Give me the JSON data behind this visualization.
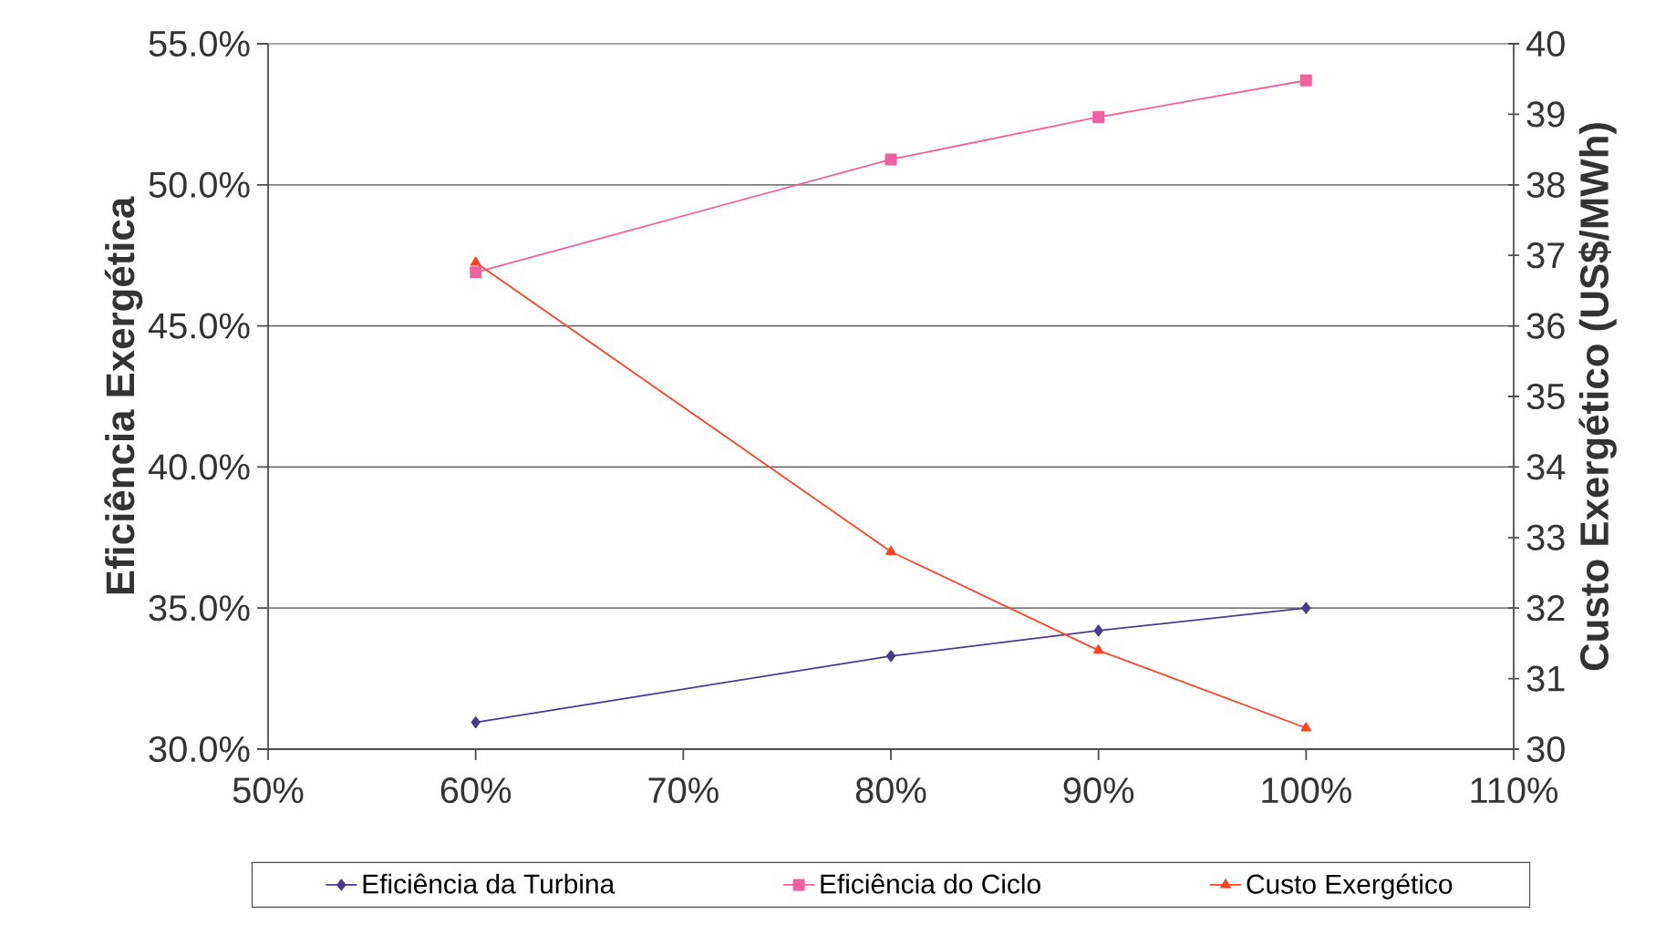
{
  "chart_data": {
    "type": "line",
    "ylabel": "Eficiência Exergética",
    "y2label": "Custo Exergético (US$/MWh)",
    "x": [
      60,
      80,
      90,
      100
    ],
    "xlim": [
      50,
      110
    ],
    "xticks": [
      {
        "value": 50,
        "label": "50%"
      },
      {
        "value": 60,
        "label": "60%"
      },
      {
        "value": 70,
        "label": "70%"
      },
      {
        "value": 80,
        "label": "80%"
      },
      {
        "value": 90,
        "label": "90%"
      },
      {
        "value": 100,
        "label": "100%"
      },
      {
        "value": 110,
        "label": "110%"
      }
    ],
    "ylim": [
      30,
      55
    ],
    "yticks": [
      {
        "value": 30,
        "label": "30.0%"
      },
      {
        "value": 35,
        "label": "35.0%"
      },
      {
        "value": 40,
        "label": "40.0%"
      },
      {
        "value": 45,
        "label": "45.0%"
      },
      {
        "value": 50,
        "label": "50.0%"
      },
      {
        "value": 55,
        "label": "55.0%"
      }
    ],
    "y2lim": [
      30,
      40
    ],
    "y2ticks": [
      30,
      31,
      32,
      33,
      34,
      35,
      36,
      37,
      38,
      39,
      40
    ],
    "grid": "y",
    "legend": "bottom",
    "series": [
      {
        "name": "Eficiência da Turbina",
        "color": "#4b3a8c",
        "marker": "diamond",
        "values": [
          30.95,
          33.3,
          34.2,
          35.0
        ]
      },
      {
        "name": "Eficiência do Ciclo",
        "color": "#f0609e",
        "marker": "square",
        "values": [
          46.9,
          50.9,
          52.4,
          53.7
        ]
      },
      {
        "name": "Custo Exergético",
        "color": "#ff4422",
        "marker": "triangle",
        "axis": "y2",
        "values": [
          36.9,
          32.8,
          31.4,
          30.3
        ]
      }
    ]
  }
}
